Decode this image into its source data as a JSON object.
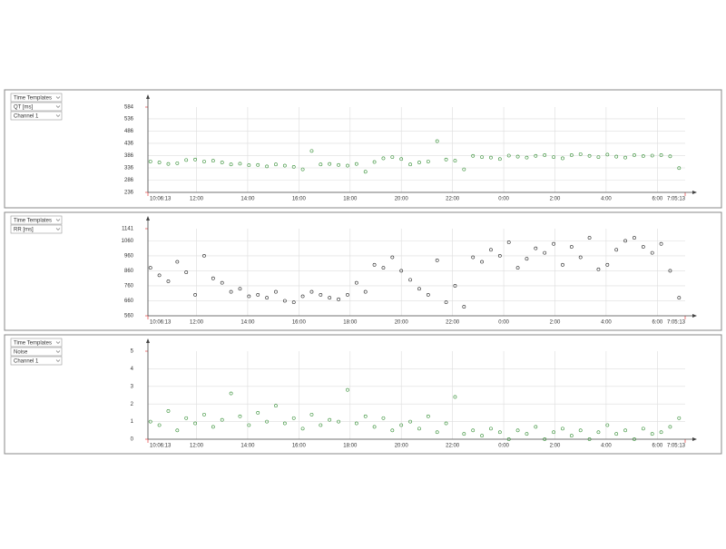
{
  "selectors": [
    [
      "Time Templates",
      "QT [ms]",
      "Channel 1"
    ],
    [
      "Time Templates",
      "RR [ms]"
    ],
    [
      "Time Templates",
      "Noise",
      "Channel 1"
    ]
  ],
  "chart_data": [
    {
      "type": "scatter",
      "color": "#2e8b2e",
      "limit_color": "#e02020",
      "grid": true,
      "xlim": [
        10.1036,
        31.0869
      ],
      "ylim": [
        236,
        584
      ],
      "xticks": [
        {
          "value": 10.1036,
          "label": "10:06:13"
        },
        {
          "value": 12,
          "label": "12:00"
        },
        {
          "value": 14,
          "label": "14:00"
        },
        {
          "value": 16,
          "label": "16:00"
        },
        {
          "value": 18,
          "label": "18:00"
        },
        {
          "value": 20,
          "label": "20:00"
        },
        {
          "value": 22,
          "label": "22:00"
        },
        {
          "value": 24,
          "label": "0:00"
        },
        {
          "value": 26,
          "label": "2:00"
        },
        {
          "value": 28,
          "label": "4:00"
        },
        {
          "value": 30,
          "label": "6:00"
        },
        {
          "value": 31.0869,
          "label": "7:05:13"
        }
      ],
      "yticks": [
        236,
        286,
        336,
        386,
        436,
        486,
        536,
        584
      ],
      "x": [
        10.2,
        10.55,
        10.9,
        11.25,
        11.6,
        11.95,
        12.3,
        12.65,
        13.0,
        13.35,
        13.7,
        14.05,
        14.4,
        14.75,
        15.1,
        15.45,
        15.8,
        16.15,
        16.5,
        16.85,
        17.2,
        17.55,
        17.9,
        18.25,
        18.6,
        18.95,
        19.3,
        19.65,
        20.0,
        20.35,
        20.7,
        21.05,
        21.4,
        21.75,
        22.1,
        22.45,
        22.8,
        23.15,
        23.5,
        23.85,
        24.2,
        24.55,
        24.9,
        25.25,
        25.6,
        25.95,
        26.3,
        26.65,
        27.0,
        27.35,
        27.7,
        28.05,
        28.4,
        28.75,
        29.1,
        29.45,
        29.8,
        30.15,
        30.5,
        30.85
      ],
      "values": [
        362,
        358,
        352,
        355,
        368,
        370,
        362,
        365,
        358,
        350,
        353,
        347,
        348,
        342,
        350,
        345,
        340,
        330,
        405,
        350,
        352,
        348,
        345,
        352,
        320,
        360,
        375,
        380,
        372,
        350,
        358,
        362,
        445,
        370,
        365,
        330,
        385,
        380,
        378,
        372,
        386,
        382,
        378,
        385,
        388,
        380,
        375,
        388,
        392,
        385,
        380,
        390,
        382,
        378,
        388,
        384,
        386,
        388,
        383,
        335
      ]
    },
    {
      "type": "scatter",
      "color": "#222222",
      "limit_color": "#e02020",
      "grid": true,
      "xlim": [
        10.1036,
        31.0869
      ],
      "ylim": [
        560,
        1141
      ],
      "xticks": [
        {
          "value": 10.1036,
          "label": "10:06:13"
        },
        {
          "value": 12,
          "label": "12:00"
        },
        {
          "value": 14,
          "label": "14:00"
        },
        {
          "value": 16,
          "label": "16:00"
        },
        {
          "value": 18,
          "label": "18:00"
        },
        {
          "value": 20,
          "label": "20:00"
        },
        {
          "value": 22,
          "label": "22:00"
        },
        {
          "value": 24,
          "label": "0:00"
        },
        {
          "value": 26,
          "label": "2:00"
        },
        {
          "value": 28,
          "label": "4:00"
        },
        {
          "value": 30,
          "label": "6:00"
        },
        {
          "value": 31.0869,
          "label": "7:05:13"
        }
      ],
      "yticks": [
        560,
        660,
        760,
        860,
        960,
        1060,
        1141
      ],
      "x": [
        10.2,
        10.55,
        10.9,
        11.25,
        11.6,
        11.95,
        12.3,
        12.65,
        13.0,
        13.35,
        13.7,
        14.05,
        14.4,
        14.75,
        15.1,
        15.45,
        15.8,
        16.15,
        16.5,
        16.85,
        17.2,
        17.55,
        17.9,
        18.25,
        18.6,
        18.95,
        19.3,
        19.65,
        20.0,
        20.35,
        20.7,
        21.05,
        21.4,
        21.75,
        22.1,
        22.45,
        22.8,
        23.15,
        23.5,
        23.85,
        24.2,
        24.55,
        24.9,
        25.25,
        25.6,
        25.95,
        26.3,
        26.65,
        27.0,
        27.35,
        27.7,
        28.05,
        28.4,
        28.75,
        29.1,
        29.45,
        29.8,
        30.15,
        30.5,
        30.85
      ],
      "values": [
        880,
        830,
        790,
        920,
        850,
        700,
        960,
        810,
        780,
        720,
        740,
        690,
        700,
        680,
        720,
        660,
        650,
        690,
        720,
        700,
        680,
        670,
        700,
        780,
        720,
        900,
        880,
        950,
        860,
        800,
        740,
        700,
        930,
        650,
        760,
        620,
        950,
        920,
        1000,
        960,
        1050,
        880,
        940,
        1010,
        980,
        1040,
        900,
        1020,
        950,
        1080,
        870,
        900,
        1000,
        1060,
        1080,
        1020,
        980,
        1040,
        860,
        680
      ]
    },
    {
      "type": "scatter",
      "color": "#2e8b2e",
      "limit_color": "#e02020",
      "grid": true,
      "xlim": [
        10.1036,
        31.0869
      ],
      "ylim": [
        0,
        5
      ],
      "xticks": [
        {
          "value": 10.1036,
          "label": "10:06:13"
        },
        {
          "value": 12,
          "label": "12:00"
        },
        {
          "value": 14,
          "label": "14:00"
        },
        {
          "value": 16,
          "label": "16:00"
        },
        {
          "value": 18,
          "label": "18:00"
        },
        {
          "value": 20,
          "label": "20:00"
        },
        {
          "value": 22,
          "label": "22:00"
        },
        {
          "value": 24,
          "label": "0:00"
        },
        {
          "value": 26,
          "label": "2:00"
        },
        {
          "value": 28,
          "label": "4:00"
        },
        {
          "value": 30,
          "label": "6:00"
        },
        {
          "value": 31.0869,
          "label": "7:05:13"
        }
      ],
      "yticks": [
        0,
        1,
        2,
        3,
        4,
        5
      ],
      "x": [
        10.2,
        10.55,
        10.9,
        11.25,
        11.6,
        11.95,
        12.3,
        12.65,
        13.0,
        13.35,
        13.7,
        14.05,
        14.4,
        14.75,
        15.1,
        15.45,
        15.8,
        16.15,
        16.5,
        16.85,
        17.2,
        17.55,
        17.9,
        18.25,
        18.6,
        18.95,
        19.3,
        19.65,
        20.0,
        20.35,
        20.7,
        21.05,
        21.4,
        21.75,
        22.1,
        22.45,
        22.8,
        23.15,
        23.5,
        23.85,
        24.2,
        24.55,
        24.9,
        25.25,
        25.6,
        25.95,
        26.3,
        26.65,
        27.0,
        27.35,
        27.7,
        28.05,
        28.4,
        28.75,
        29.1,
        29.45,
        29.8,
        30.15,
        30.5,
        30.85
      ],
      "values": [
        1.0,
        0.8,
        1.6,
        0.5,
        1.2,
        0.9,
        1.4,
        0.7,
        1.1,
        2.6,
        1.3,
        0.8,
        1.5,
        1.0,
        1.9,
        0.9,
        1.2,
        0.6,
        1.4,
        0.8,
        1.1,
        1.0,
        2.8,
        0.9,
        1.3,
        0.7,
        1.2,
        0.5,
        0.8,
        1.0,
        0.6,
        1.3,
        0.4,
        0.9,
        2.4,
        0.3,
        0.5,
        0.2,
        0.6,
        0.4,
        0.0,
        0.5,
        0.3,
        0.7,
        0.0,
        0.4,
        0.6,
        0.2,
        0.5,
        0.0,
        0.4,
        0.8,
        0.3,
        0.5,
        0.0,
        0.6,
        0.3,
        0.4,
        0.7,
        1.2
      ]
    }
  ]
}
